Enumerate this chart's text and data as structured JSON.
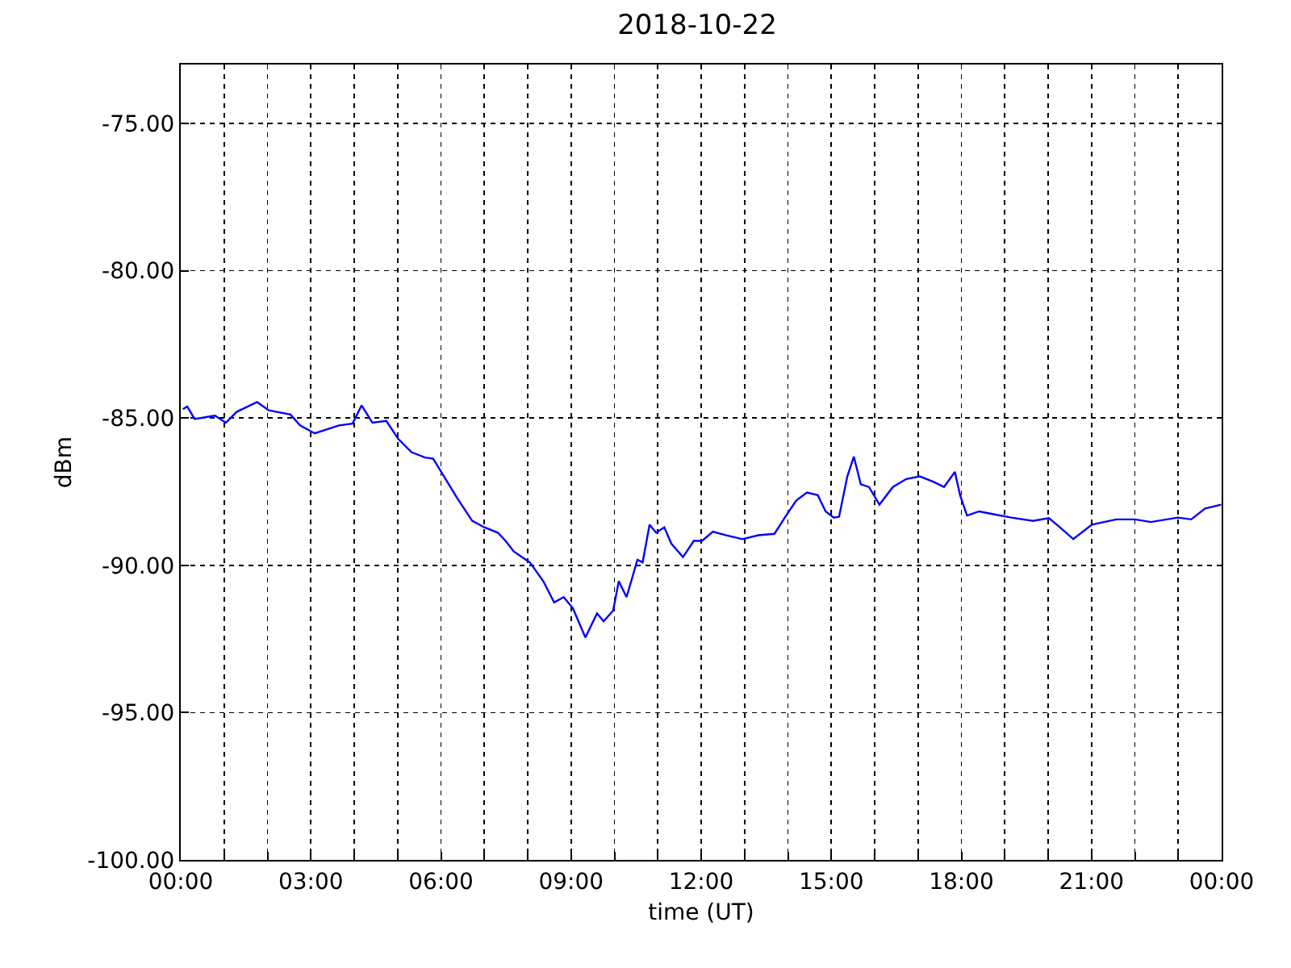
{
  "chart_data": {
    "type": "line",
    "title": "2018-10-22",
    "xlabel": "time (UT)",
    "ylabel": "dBm",
    "x": [
      0.05,
      0.15,
      0.32,
      0.79,
      1.04,
      1.29,
      1.76,
      2.03,
      2.53,
      2.75,
      3.09,
      3.65,
      3.96,
      4.17,
      4.42,
      4.74,
      5.01,
      5.32,
      5.63,
      5.82,
      6.07,
      6.37,
      6.72,
      7.0,
      7.31,
      7.49,
      7.68,
      8.05,
      8.36,
      8.61,
      8.83,
      9.04,
      9.33,
      9.6,
      9.75,
      9.97,
      10.1,
      10.28,
      10.53,
      10.65,
      10.81,
      10.96,
      11.15,
      11.31,
      11.58,
      11.83,
      12.02,
      12.27,
      12.58,
      12.95,
      13.32,
      13.69,
      13.94,
      14.19,
      14.44,
      14.69,
      14.87,
      15.06,
      15.18,
      15.37,
      15.52,
      15.68,
      15.87,
      16.11,
      16.42,
      16.73,
      17.04,
      17.35,
      17.6,
      17.85,
      17.97,
      18.13,
      18.41,
      18.72,
      19.15,
      19.65,
      20.02,
      20.27,
      20.58,
      21.01,
      21.57,
      22.0,
      22.37,
      22.99,
      23.3,
      23.62,
      23.99
    ],
    "series": [
      {
        "color": "#0000ff",
        "values": [
          -84.7,
          -84.61,
          -85.03,
          -84.92,
          -85.16,
          -84.79,
          -84.46,
          -84.74,
          -84.88,
          -85.25,
          -85.52,
          -85.25,
          -85.19,
          -84.57,
          -85.16,
          -85.1,
          -85.7,
          -86.16,
          -86.34,
          -86.38,
          -86.98,
          -87.71,
          -88.49,
          -88.71,
          -88.89,
          -89.17,
          -89.53,
          -89.9,
          -90.54,
          -91.26,
          -91.08,
          -91.45,
          -92.45,
          -91.63,
          -91.9,
          -91.54,
          -90.54,
          -91.08,
          -89.81,
          -89.9,
          -88.62,
          -88.89,
          -88.71,
          -89.26,
          -89.72,
          -89.17,
          -89.17,
          -88.86,
          -88.98,
          -89.11,
          -88.98,
          -88.93,
          -88.35,
          -87.8,
          -87.53,
          -87.62,
          -88.17,
          -88.38,
          -88.35,
          -86.98,
          -86.31,
          -87.25,
          -87.34,
          -87.94,
          -87.34,
          -87.07,
          -86.98,
          -87.16,
          -87.34,
          -86.83,
          -87.62,
          -88.31,
          -88.17,
          -88.26,
          -88.38,
          -88.49,
          -88.4,
          -88.71,
          -89.11,
          -88.62,
          -88.44,
          -88.44,
          -88.53,
          -88.38,
          -88.44,
          -88.07,
          -87.94
        ]
      }
    ],
    "xlim": [
      0,
      24
    ],
    "xticks": [
      {
        "value": 0,
        "label": "00:00"
      },
      {
        "value": 1,
        "label": null
      },
      {
        "value": 2,
        "label": null
      },
      {
        "value": 3,
        "label": "03:00"
      },
      {
        "value": 4,
        "label": null
      },
      {
        "value": 5,
        "label": null
      },
      {
        "value": 6,
        "label": "06:00"
      },
      {
        "value": 7,
        "label": null
      },
      {
        "value": 8,
        "label": null
      },
      {
        "value": 9,
        "label": "09:00"
      },
      {
        "value": 10,
        "label": null
      },
      {
        "value": 11,
        "label": null
      },
      {
        "value": 12,
        "label": "12:00"
      },
      {
        "value": 13,
        "label": null
      },
      {
        "value": 14,
        "label": null
      },
      {
        "value": 15,
        "label": "15:00"
      },
      {
        "value": 16,
        "label": null
      },
      {
        "value": 17,
        "label": null
      },
      {
        "value": 18,
        "label": "18:00"
      },
      {
        "value": 19,
        "label": null
      },
      {
        "value": 20,
        "label": null
      },
      {
        "value": 21,
        "label": "21:00"
      },
      {
        "value": 22,
        "label": null
      },
      {
        "value": 23,
        "label": null
      },
      {
        "value": 24,
        "label": "00:00"
      }
    ],
    "ylim": [
      -100,
      -73
    ],
    "yticks": [
      {
        "value": -100,
        "label": "-100.00"
      },
      {
        "value": -95,
        "label": "-95.00"
      },
      {
        "value": -90,
        "label": "-90.00"
      },
      {
        "value": -85,
        "label": "-85.00"
      },
      {
        "value": -80,
        "label": "-80.00"
      },
      {
        "value": -75,
        "label": "-75.00"
      }
    ],
    "grid": true,
    "line_style": "solid"
  }
}
